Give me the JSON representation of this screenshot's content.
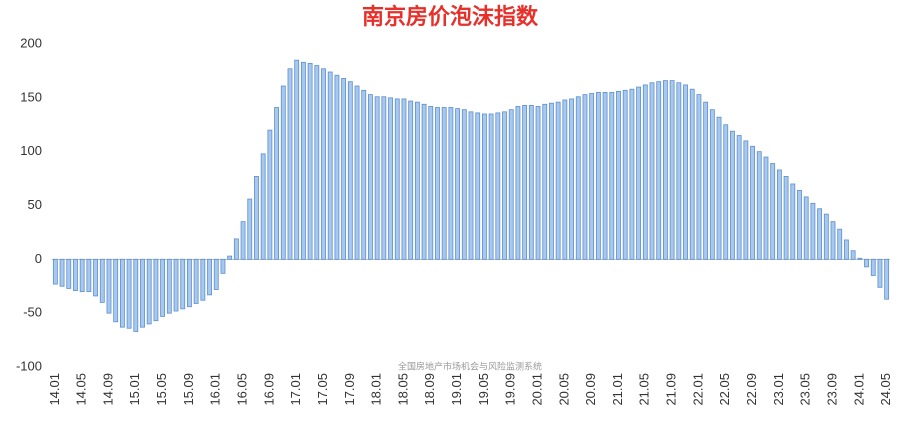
{
  "chart_data": {
    "type": "bar",
    "title": "南京房价泡沫指数",
    "watermark": "全国房地产市场机会与风险监测系统",
    "categories": [
      "14.01",
      null,
      null,
      null,
      "14.05",
      null,
      null,
      null,
      "14.09",
      null,
      null,
      null,
      "15.01",
      null,
      null,
      null,
      "15.05",
      null,
      null,
      null,
      "15.09",
      null,
      null,
      null,
      "16.01",
      null,
      null,
      null,
      "16.05",
      null,
      null,
      null,
      "16.09",
      null,
      null,
      null,
      "17.01",
      null,
      null,
      null,
      "17.05",
      null,
      null,
      null,
      "17.09",
      null,
      null,
      null,
      "18.01",
      null,
      null,
      null,
      "18.05",
      null,
      null,
      null,
      "18.09",
      null,
      null,
      null,
      "19.01",
      null,
      null,
      null,
      "19.05",
      null,
      null,
      null,
      "19.09",
      null,
      null,
      null,
      "20.01",
      null,
      null,
      null,
      "20.05",
      null,
      null,
      null,
      "20.09",
      null,
      null,
      null,
      "21.01",
      null,
      null,
      null,
      "21.05",
      null,
      null,
      null,
      "21.09",
      null,
      null,
      null,
      "22.01",
      null,
      null,
      null,
      "22.05",
      null,
      null,
      null,
      "22.09",
      null,
      null,
      null,
      "23.01",
      null,
      null,
      null,
      "23.05",
      null,
      null,
      null,
      "23.09",
      null,
      null,
      null,
      "24.01",
      null,
      null,
      null,
      "24.05"
    ],
    "values": [
      -23,
      -25,
      -27,
      -29,
      -30,
      -30,
      -34,
      -40,
      -50,
      -58,
      -63,
      -64,
      -67,
      -63,
      -60,
      -57,
      -53,
      -50,
      -48,
      -46,
      -44,
      -41,
      -38,
      -33,
      -28,
      -13,
      3,
      19,
      35,
      56,
      77,
      98,
      120,
      141,
      161,
      177,
      185,
      183,
      182,
      180,
      177,
      174,
      171,
      168,
      165,
      161,
      157,
      153,
      151,
      151,
      150,
      149,
      149,
      147,
      146,
      144,
      142,
      141,
      141,
      141,
      140,
      139,
      137,
      136,
      135,
      135,
      136,
      137,
      139,
      142,
      143,
      143,
      142,
      144,
      145,
      146,
      148,
      149,
      151,
      153,
      154,
      155,
      155,
      155,
      156,
      157,
      158,
      160,
      162,
      164,
      165,
      166,
      166,
      164,
      162,
      158,
      153,
      146,
      139,
      132,
      125,
      119,
      115,
      110,
      105,
      100,
      95,
      89,
      83,
      77,
      70,
      64,
      58,
      52,
      47,
      42,
      35,
      28,
      18,
      8,
      1,
      -7,
      -15,
      -26,
      -37
    ],
    "color": "#a9c8ee",
    "edge_color": "#5b8fd0",
    "title_color": "#e8302a",
    "ylim": [
      -100,
      200
    ],
    "yticks": [
      -100,
      -50,
      0,
      50,
      100,
      150,
      200
    ],
    "grid": false
  }
}
